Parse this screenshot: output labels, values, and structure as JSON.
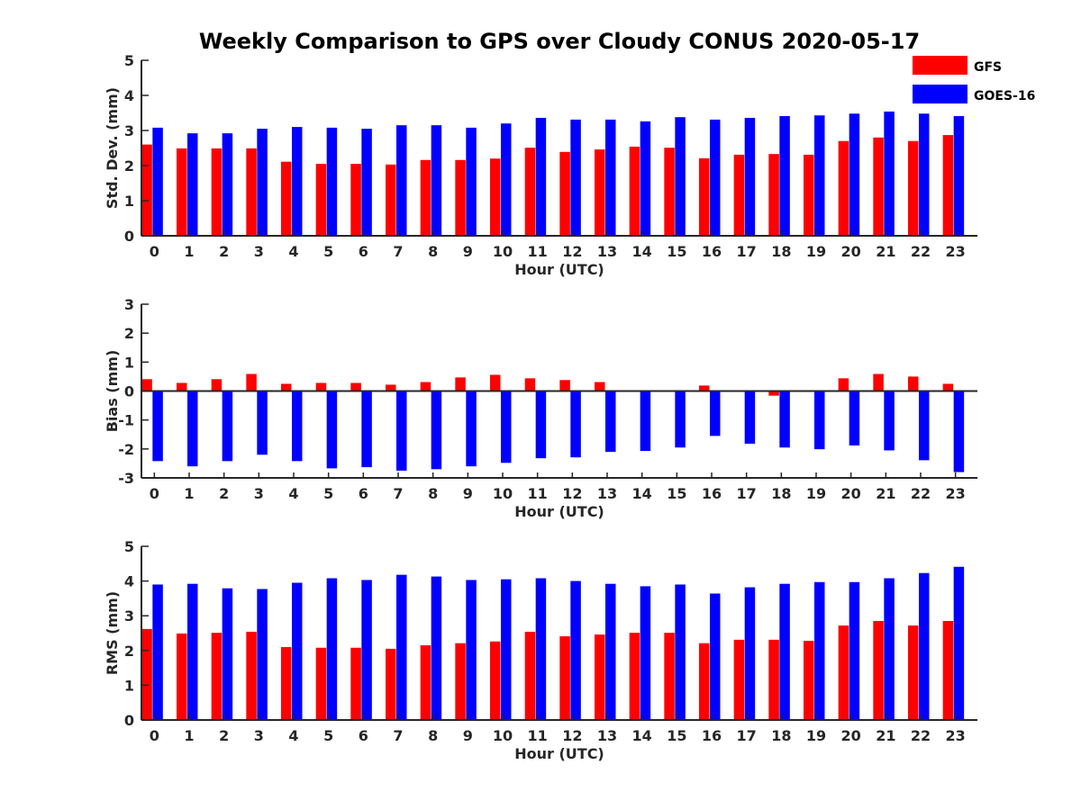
{
  "title": "Weekly Comparison to GPS over Cloudy CONUS 2020-05-17",
  "legend": [
    {
      "name": "GFS",
      "color": "#ff0000"
    },
    {
      "name": "GOES-16",
      "color": "#0000ff"
    }
  ],
  "chart_data": [
    {
      "type": "bar",
      "ylabel": "Std. Dev. (mm)",
      "xlabel": "Hour (UTC)",
      "ylim": [
        0,
        5
      ],
      "yticks": [
        0,
        1,
        2,
        3,
        4,
        5
      ],
      "categories": [
        "0",
        "1",
        "2",
        "3",
        "4",
        "5",
        "6",
        "7",
        "8",
        "9",
        "10",
        "11",
        "12",
        "13",
        "14",
        "15",
        "16",
        "17",
        "18",
        "19",
        "20",
        "21",
        "22",
        "23"
      ],
      "series": [
        {
          "name": "GFS",
          "color": "#ff0000",
          "values": [
            2.6,
            2.49,
            2.49,
            2.49,
            2.11,
            2.05,
            2.05,
            2.03,
            2.16,
            2.16,
            2.2,
            2.51,
            2.39,
            2.46,
            2.54,
            2.51,
            2.21,
            2.31,
            2.33,
            2.31,
            2.7,
            2.8,
            2.7,
            2.87
          ]
        },
        {
          "name": "GOES-16",
          "color": "#0000ff",
          "values": [
            3.08,
            2.92,
            2.92,
            3.05,
            3.1,
            3.08,
            3.05,
            3.15,
            3.15,
            3.08,
            3.2,
            3.36,
            3.31,
            3.31,
            3.26,
            3.38,
            3.31,
            3.36,
            3.41,
            3.43,
            3.48,
            3.54,
            3.48,
            3.41
          ]
        }
      ],
      "grid": false
    },
    {
      "type": "bar",
      "ylabel": "Bias (mm)",
      "xlabel": "Hour (UTC)",
      "ylim": [
        -3,
        3
      ],
      "yticks": [
        -3,
        -2,
        -1,
        0,
        1,
        2,
        3
      ],
      "categories": [
        "0",
        "1",
        "2",
        "3",
        "4",
        "5",
        "6",
        "7",
        "8",
        "9",
        "10",
        "11",
        "12",
        "13",
        "14",
        "15",
        "16",
        "17",
        "18",
        "19",
        "20",
        "21",
        "22",
        "23"
      ],
      "series": [
        {
          "name": "GFS",
          "color": "#ff0000",
          "values": [
            0.41,
            0.28,
            0.41,
            0.59,
            0.25,
            0.28,
            0.28,
            0.22,
            0.31,
            0.47,
            0.56,
            0.44,
            0.38,
            0.31,
            0.0,
            -0.03,
            0.19,
            -0.03,
            -0.16,
            0.0,
            0.44,
            0.59,
            0.5,
            0.25
          ]
        },
        {
          "name": "GOES-16",
          "color": "#0000ff",
          "values": [
            -2.42,
            -2.6,
            -2.42,
            -2.2,
            -2.42,
            -2.67,
            -2.63,
            -2.75,
            -2.7,
            -2.6,
            -2.48,
            -2.32,
            -2.29,
            -2.1,
            -2.07,
            -1.95,
            -1.55,
            -1.82,
            -1.95,
            -2.01,
            -1.88,
            -2.05,
            -2.39,
            -2.8
          ]
        }
      ],
      "grid": false
    },
    {
      "type": "bar",
      "ylabel": "RMS (mm)",
      "xlabel": "Hour (UTC)",
      "ylim": [
        0,
        5
      ],
      "yticks": [
        0,
        1,
        2,
        3,
        4,
        5
      ],
      "categories": [
        "0",
        "1",
        "2",
        "3",
        "4",
        "5",
        "6",
        "7",
        "8",
        "9",
        "10",
        "11",
        "12",
        "13",
        "14",
        "15",
        "16",
        "17",
        "18",
        "19",
        "20",
        "21",
        "22",
        "23"
      ],
      "series": [
        {
          "name": "GFS",
          "color": "#ff0000",
          "values": [
            2.62,
            2.49,
            2.51,
            2.54,
            2.1,
            2.08,
            2.08,
            2.05,
            2.15,
            2.21,
            2.26,
            2.54,
            2.41,
            2.46,
            2.51,
            2.51,
            2.21,
            2.31,
            2.31,
            2.28,
            2.72,
            2.85,
            2.72,
            2.85
          ]
        },
        {
          "name": "GOES-16",
          "color": "#0000ff",
          "values": [
            3.9,
            3.92,
            3.79,
            3.77,
            3.95,
            4.08,
            4.03,
            4.18,
            4.13,
            4.03,
            4.05,
            4.08,
            4.0,
            3.92,
            3.85,
            3.9,
            3.64,
            3.82,
            3.92,
            3.97,
            3.97,
            4.08,
            4.23,
            4.41
          ]
        }
      ],
      "grid": false
    }
  ]
}
